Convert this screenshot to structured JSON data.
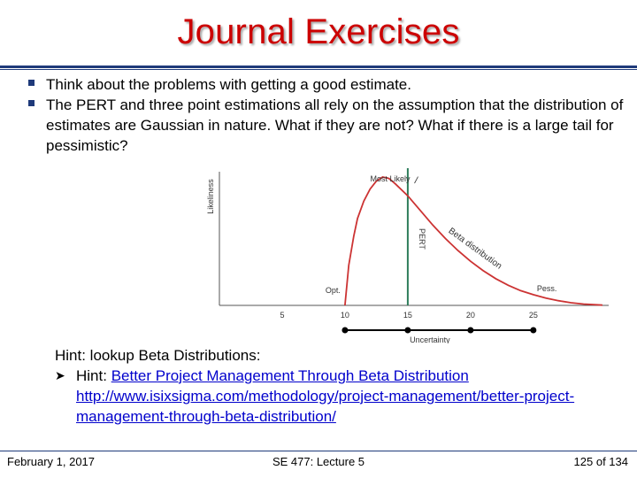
{
  "slide": {
    "title": "Journal Exercises",
    "bullets": [
      "Think about the problems with getting a good estimate.",
      "The PERT and three point estimations all rely on the assumption that the distribution of estimates are Gaussian in nature. What if they are not? What if there is a large tail for pessimistic?"
    ],
    "hint_heading": "Hint: lookup Beta Distributions:",
    "hint_prefix": "Hint: ",
    "hint_link_text": "Better Project Management Through Beta Distribution",
    "hint_url": "http://www.isixsigma.com/methodology/project-management/better-project-management-through-beta-distribution/"
  },
  "chart_data": {
    "type": "line",
    "xlabel": "Uncertainty",
    "ylabel": "Likeliness",
    "x_ticks": [
      5,
      10,
      15,
      20,
      25
    ],
    "xlim": [
      0,
      31
    ],
    "ylim": [
      0,
      1
    ],
    "curve_label": "Beta distribution",
    "vertical_line": {
      "x": 15,
      "label": "PERT"
    },
    "annotations": [
      {
        "label": "Opt.",
        "x": 10
      },
      {
        "label": "Most Likely",
        "x": 13
      },
      {
        "label": "Pess.",
        "x": 25
      }
    ],
    "series": [
      {
        "x": [
          10,
          10.3,
          10.7,
          11,
          11.5,
          12,
          12.5,
          13,
          13.5,
          14,
          15,
          16,
          17,
          18,
          19,
          20,
          21,
          22,
          23,
          24,
          25,
          26,
          27,
          28,
          29,
          30.5
        ],
        "y": [
          0.0,
          0.3,
          0.52,
          0.65,
          0.78,
          0.87,
          0.93,
          0.96,
          0.95,
          0.91,
          0.82,
          0.71,
          0.6,
          0.5,
          0.41,
          0.33,
          0.26,
          0.2,
          0.15,
          0.11,
          0.08,
          0.055,
          0.035,
          0.02,
          0.01,
          0.002
        ]
      }
    ],
    "colors": {
      "curve": "#cc3333",
      "pert_line": "#2e7d5b"
    }
  },
  "footer": {
    "date": "February 1, 2017",
    "course": "SE 477: Lecture 5",
    "page": "125 of 134"
  }
}
